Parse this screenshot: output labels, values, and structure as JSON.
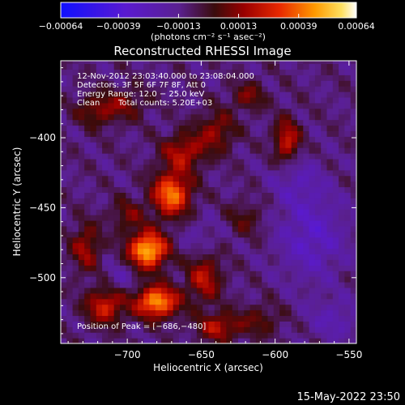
{
  "chart_data": {
    "type": "heatmap",
    "title": "Reconstructed RHESSI Image",
    "xlabel": "Heliocentric X (arcsec)",
    "ylabel": "Heliocentric Y (arcsec)",
    "xlim": [
      -745,
      -545
    ],
    "ylim": [
      -547,
      -345
    ],
    "x_ticks": [
      -700,
      -650,
      -600,
      -550
    ],
    "x_tick_labels": [
      "−700",
      "−650",
      "−600",
      "−550"
    ],
    "y_ticks": [
      -400,
      -450,
      -500
    ],
    "y_tick_labels": [
      "−400",
      "−450",
      "−500"
    ],
    "colorbar": {
      "min": -0.00064,
      "max": 0.00064,
      "ticks": [
        -0.00064,
        -0.00039,
        -0.00013,
        0.00013,
        0.00039,
        0.00064
      ],
      "tick_labels": [
        "−0.00064",
        "−0.00039",
        "−0.00013",
        "0.00013",
        "0.00039",
        "0.00064"
      ],
      "unit_label": "(photons cm⁻² s⁻¹ asec⁻²)"
    },
    "annotations": {
      "time_range": "12‑Nov‑2012 23:03:40.000 to 23:08:04.000",
      "detectors": "Detectors: 3F 5F 6F 7F 8F, Att 0",
      "energy": "Energy Range: 12.0 − 25.0 keV",
      "method": "Clean",
      "total_counts": "Total counts: 5.20E+03",
      "peak": "Position of Peak = [−686,−480]"
    },
    "peak": {
      "x": -686,
      "y": -480
    },
    "sources": [
      {
        "x": -686,
        "y": -480,
        "amp": 0.00064,
        "sx": 9,
        "sy": 9
      },
      {
        "x": -680,
        "y": -517,
        "amp": 0.00058,
        "sx": 10,
        "sy": 8
      },
      {
        "x": -670,
        "y": -440,
        "amp": 0.00052,
        "sx": 9,
        "sy": 11
      },
      {
        "x": -662,
        "y": -410,
        "amp": 0.0003,
        "sx": 10,
        "sy": 9
      },
      {
        "x": -700,
        "y": -455,
        "amp": 0.00018,
        "sx": 8,
        "sy": 8
      },
      {
        "x": -715,
        "y": -520,
        "amp": 0.00036,
        "sx": 9,
        "sy": 9
      },
      {
        "x": -728,
        "y": -478,
        "amp": 0.00026,
        "sx": 7,
        "sy": 12
      },
      {
        "x": -720,
        "y": -380,
        "amp": 0.00022,
        "sx": 10,
        "sy": 8
      },
      {
        "x": -640,
        "y": -395,
        "amp": 0.00024,
        "sx": 9,
        "sy": 10
      },
      {
        "x": -648,
        "y": -500,
        "amp": 0.0003,
        "sx": 8,
        "sy": 12
      },
      {
        "x": -638,
        "y": -535,
        "amp": 0.0003,
        "sx": 10,
        "sy": 7
      },
      {
        "x": -620,
        "y": -458,
        "amp": 0.00014,
        "sx": 9,
        "sy": 9
      },
      {
        "x": -610,
        "y": -530,
        "amp": 0.00016,
        "sx": 10,
        "sy": 8
      },
      {
        "x": -592,
        "y": -402,
        "amp": 0.00034,
        "sx": 6,
        "sy": 11
      },
      {
        "x": -618,
        "y": -370,
        "amp": 0.0002,
        "sx": 8,
        "sy": 7
      },
      {
        "x": -700,
        "y": -375,
        "amp": 0.00016,
        "sx": 10,
        "sy": 8
      },
      {
        "x": -575,
        "y": -470,
        "amp": -0.0002,
        "sx": 16,
        "sy": 22
      },
      {
        "x": -585,
        "y": -430,
        "amp": -0.00012,
        "sx": 12,
        "sy": 12
      },
      {
        "x": -560,
        "y": -530,
        "amp": -0.00014,
        "sx": 12,
        "sy": 10
      },
      {
        "x": -705,
        "y": -500,
        "amp": -0.0001,
        "sx": 8,
        "sy": 8
      },
      {
        "x": -650,
        "y": -470,
        "amp": -8e-05,
        "sx": 10,
        "sy": 10
      }
    ]
  },
  "footer": {
    "timestamp": "15‑May‑2022 23:50"
  }
}
